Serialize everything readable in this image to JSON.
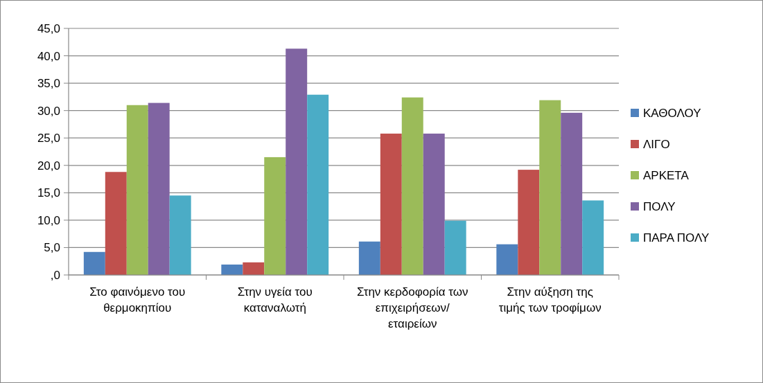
{
  "chart_data": {
    "type": "bar",
    "categories": [
      "Στο φαινόμενο του θερμοκηπίου",
      "Στην υγεία του καταναλωτή",
      "Στην κερδοφορία των επιχειρήσεων/ εταιρείων",
      "Στην αύξηση της τιμής των τροφίμων"
    ],
    "series": [
      {
        "name": "ΚΑΘΟΛΟΥ",
        "color": "#4f81bd",
        "values": [
          4.2,
          1.9,
          6.1,
          5.6
        ]
      },
      {
        "name": "ΛΙΓΟ",
        "color": "#c0504d",
        "values": [
          18.8,
          2.3,
          25.8,
          19.2
        ]
      },
      {
        "name": "ΑΡΚΕΤΑ",
        "color": "#9bbb59",
        "values": [
          31.0,
          21.5,
          32.4,
          31.9
        ]
      },
      {
        "name": "ΠΟΛΥ",
        "color": "#8064a2",
        "values": [
          31.4,
          41.3,
          25.8,
          29.6
        ]
      },
      {
        "name": "ΠΑΡΑ ΠΟΛΥ",
        "color": "#4bacc6",
        "values": [
          14.5,
          32.9,
          9.9,
          13.6
        ]
      }
    ],
    "ylim": [
      0,
      45
    ],
    "yticks": [
      {
        "value": 0,
        "label": ",0"
      },
      {
        "value": 5,
        "label": "5,0"
      },
      {
        "value": 10,
        "label": "10,0"
      },
      {
        "value": 15,
        "label": "15,0"
      },
      {
        "value": 20,
        "label": "20,0"
      },
      {
        "value": 25,
        "label": "25,0"
      },
      {
        "value": 30,
        "label": "30,0"
      },
      {
        "value": 35,
        "label": "35,0"
      },
      {
        "value": 40,
        "label": "40,0"
      },
      {
        "value": 45,
        "label": "45,0"
      }
    ],
    "grid": "y",
    "legend": "right"
  }
}
